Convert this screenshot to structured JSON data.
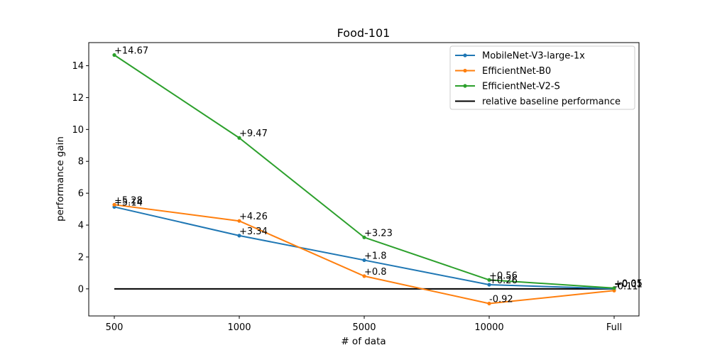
{
  "chart_data": {
    "type": "line",
    "title": "Food-101",
    "xlabel": "# of data",
    "ylabel": "performance gain",
    "categories": [
      "500",
      "1000",
      "5000",
      "10000",
      "Full"
    ],
    "ylim": [
      -1.7,
      15.45
    ],
    "yticks": [
      0,
      2,
      4,
      6,
      8,
      10,
      12,
      14
    ],
    "grid": false,
    "legend_position": "top-right",
    "series": [
      {
        "name": "MobileNet-V3-large-1x",
        "color": "#1f77b4",
        "values": [
          5.14,
          3.34,
          1.8,
          0.26,
          0.01
        ],
        "labels": [
          "+5.14",
          "+3.34",
          "+1.8",
          "+0.26",
          "+0.01"
        ]
      },
      {
        "name": "EfficientNet-B0",
        "color": "#ff7f0e",
        "values": [
          5.28,
          4.26,
          0.8,
          -0.92,
          -0.11
        ],
        "labels": [
          "+5.28",
          "+4.26",
          "+0.8",
          "-0.92",
          "-0.11"
        ]
      },
      {
        "name": "EfficientNet-V2-S",
        "color": "#2ca02c",
        "values": [
          14.67,
          9.47,
          3.23,
          0.56,
          0.05
        ],
        "labels": [
          "+14.67",
          "+9.47",
          "+3.23",
          "+0.56",
          "+0.05"
        ]
      }
    ],
    "baseline": {
      "name": "relative baseline performance",
      "color": "#000000",
      "value": 0
    }
  }
}
